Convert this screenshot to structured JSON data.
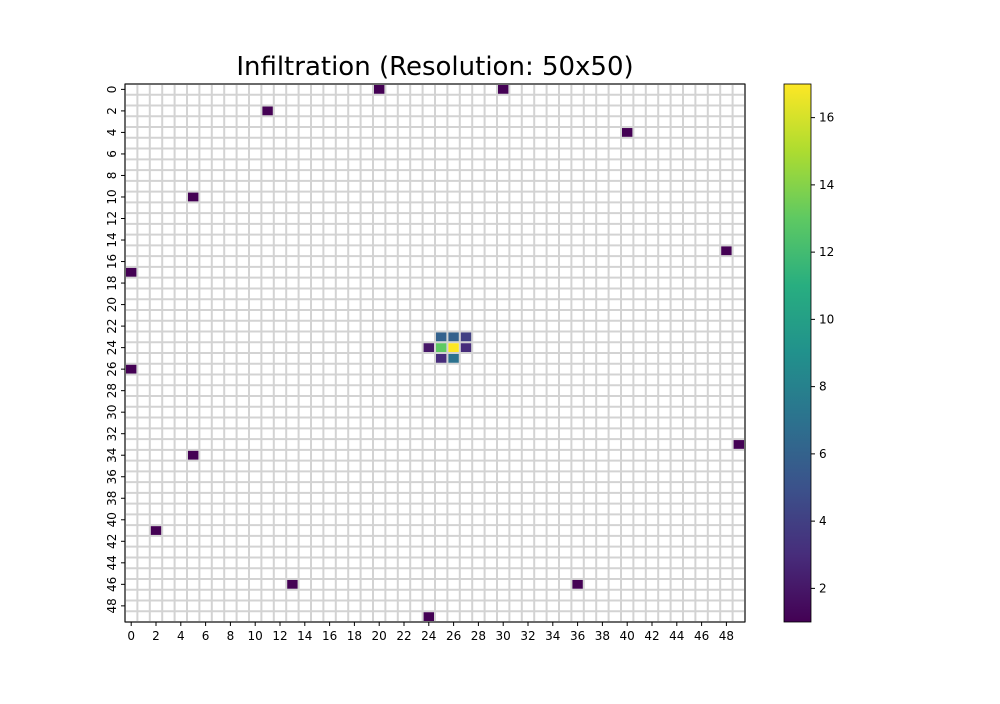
{
  "chart_data": {
    "type": "heatmap",
    "title": "Infiltration (Resolution: 50x50)",
    "xlabel": "",
    "ylabel": "",
    "rows": 50,
    "cols": 50,
    "x_ticks": [
      0,
      2,
      4,
      6,
      8,
      10,
      12,
      14,
      16,
      18,
      20,
      22,
      24,
      26,
      28,
      30,
      32,
      34,
      36,
      38,
      40,
      42,
      44,
      46,
      48
    ],
    "y_ticks": [
      0,
      2,
      4,
      6,
      8,
      10,
      12,
      14,
      16,
      18,
      20,
      22,
      24,
      26,
      28,
      30,
      32,
      34,
      36,
      38,
      40,
      42,
      44,
      46,
      48
    ],
    "y_axis_inverted": true,
    "empty_cell_color": "#ffffff",
    "grid_line_color": "#d3d3d3",
    "colormap": "viridis",
    "value_range": [
      1,
      17
    ],
    "colorbar_ticks": [
      2,
      4,
      6,
      8,
      10,
      12,
      14,
      16
    ],
    "colorbar_position": "right",
    "cells": [
      {
        "row": 0,
        "col": 20,
        "value": 1
      },
      {
        "row": 0,
        "col": 30,
        "value": 1
      },
      {
        "row": 2,
        "col": 11,
        "value": 1
      },
      {
        "row": 4,
        "col": 40,
        "value": 1
      },
      {
        "row": 10,
        "col": 5,
        "value": 1
      },
      {
        "row": 15,
        "col": 48,
        "value": 1
      },
      {
        "row": 17,
        "col": 0,
        "value": 1
      },
      {
        "row": 23,
        "col": 25,
        "value": 6
      },
      {
        "row": 23,
        "col": 26,
        "value": 6
      },
      {
        "row": 23,
        "col": 27,
        "value": 4
      },
      {
        "row": 24,
        "col": 24,
        "value": 2
      },
      {
        "row": 24,
        "col": 25,
        "value": 13
      },
      {
        "row": 24,
        "col": 26,
        "value": 17
      },
      {
        "row": 24,
        "col": 27,
        "value": 3
      },
      {
        "row": 25,
        "col": 25,
        "value": 3
      },
      {
        "row": 25,
        "col": 26,
        "value": 7
      },
      {
        "row": 26,
        "col": 0,
        "value": 1
      },
      {
        "row": 33,
        "col": 49,
        "value": 1
      },
      {
        "row": 34,
        "col": 5,
        "value": 1
      },
      {
        "row": 41,
        "col": 2,
        "value": 1
      },
      {
        "row": 46,
        "col": 13,
        "value": 1
      },
      {
        "row": 46,
        "col": 36,
        "value": 1
      },
      {
        "row": 49,
        "col": 24,
        "value": 1
      }
    ]
  }
}
